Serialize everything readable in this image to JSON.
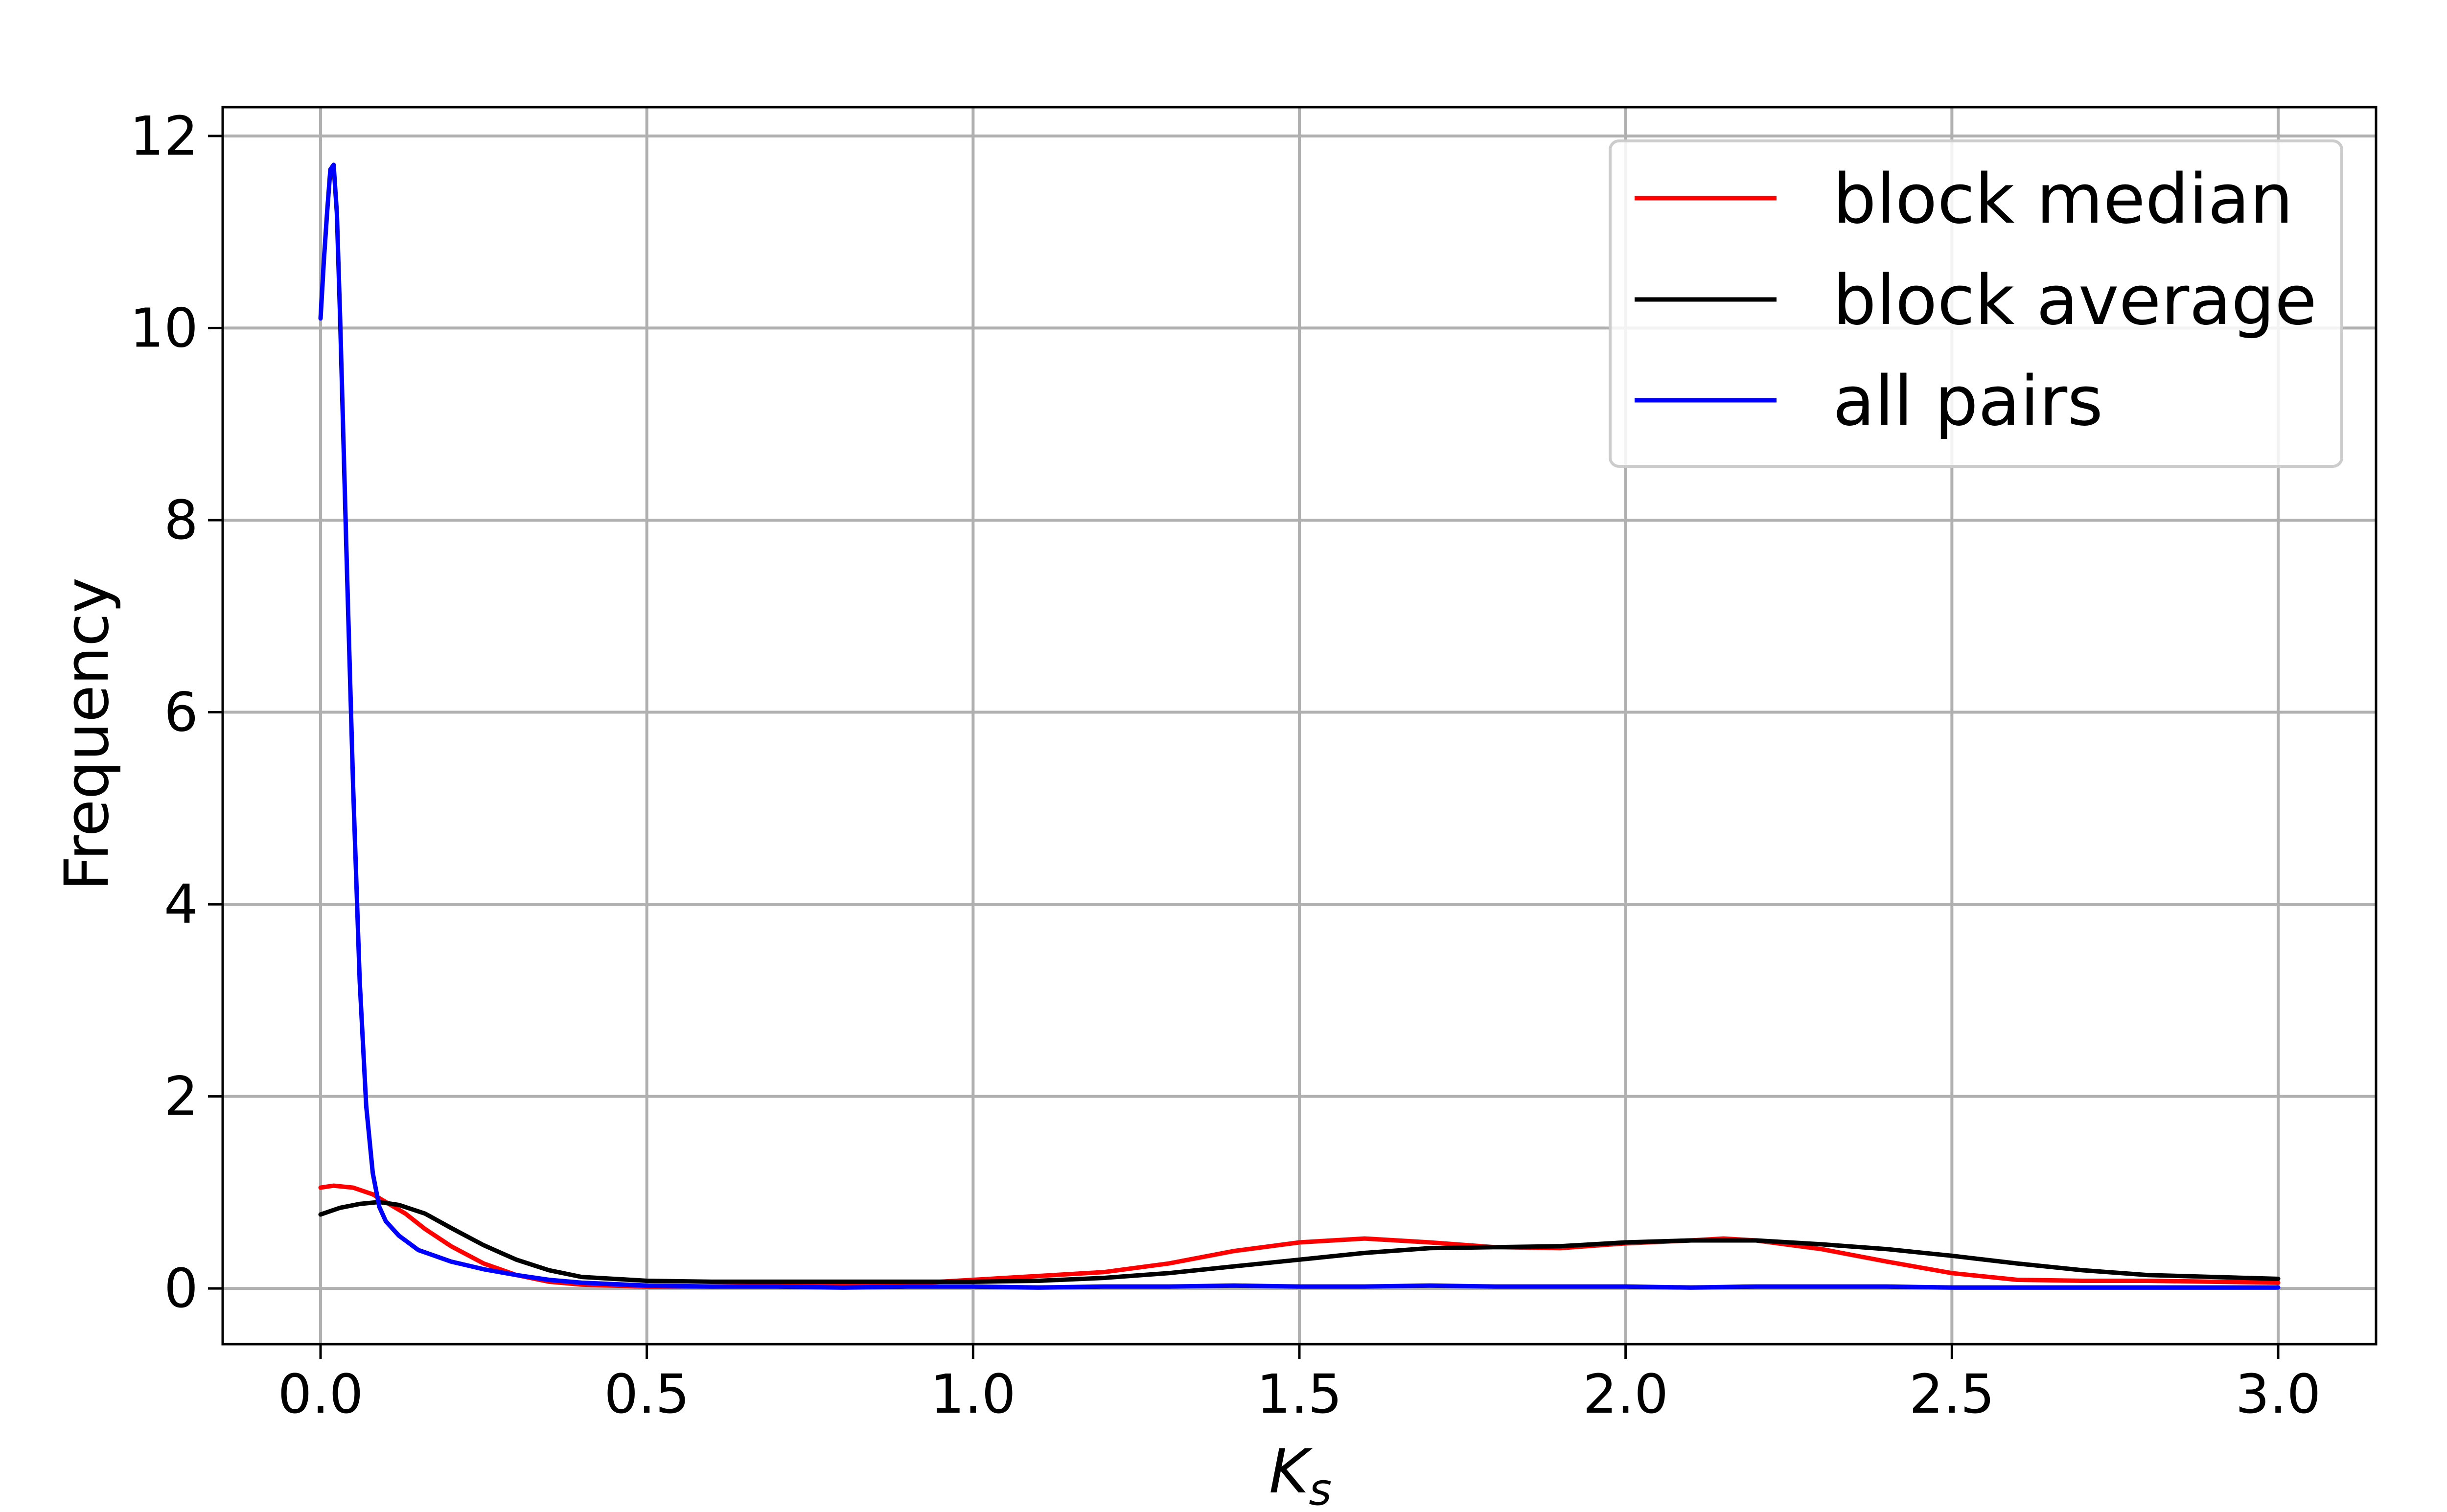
{
  "chart_data": {
    "type": "line",
    "title": "",
    "xlabel_main": "K",
    "xlabel_sub": "s",
    "ylabel": "Frequency",
    "xlim": [
      -0.15,
      3.15
    ],
    "ylim": [
      -0.58,
      12.3
    ],
    "xticks": [
      0.0,
      0.5,
      1.0,
      1.5,
      2.0,
      2.5,
      3.0
    ],
    "xtick_labels": [
      "0.0",
      "0.5",
      "1.0",
      "1.5",
      "2.0",
      "2.5",
      "3.0"
    ],
    "yticks": [
      0,
      2,
      4,
      6,
      8,
      10,
      12
    ],
    "ytick_labels": [
      "0",
      "2",
      "4",
      "6",
      "8",
      "10",
      "12"
    ],
    "grid": true,
    "legend_position": "top-right",
    "series": [
      {
        "name": "block median",
        "color": "#ff0000",
        "points": [
          [
            0.0,
            1.05
          ],
          [
            0.02,
            1.07
          ],
          [
            0.05,
            1.05
          ],
          [
            0.08,
            0.98
          ],
          [
            0.1,
            0.9
          ],
          [
            0.13,
            0.78
          ],
          [
            0.16,
            0.62
          ],
          [
            0.2,
            0.44
          ],
          [
            0.25,
            0.26
          ],
          [
            0.3,
            0.14
          ],
          [
            0.35,
            0.07
          ],
          [
            0.4,
            0.04
          ],
          [
            0.5,
            0.02
          ],
          [
            0.6,
            0.02
          ],
          [
            0.7,
            0.03
          ],
          [
            0.8,
            0.04
          ],
          [
            0.9,
            0.05
          ],
          [
            1.0,
            0.09
          ],
          [
            1.1,
            0.13
          ],
          [
            1.2,
            0.17
          ],
          [
            1.3,
            0.26
          ],
          [
            1.4,
            0.39
          ],
          [
            1.5,
            0.48
          ],
          [
            1.6,
            0.52
          ],
          [
            1.7,
            0.48
          ],
          [
            1.8,
            0.43
          ],
          [
            1.9,
            0.42
          ],
          [
            2.0,
            0.47
          ],
          [
            2.1,
            0.5
          ],
          [
            2.15,
            0.52
          ],
          [
            2.2,
            0.5
          ],
          [
            2.3,
            0.41
          ],
          [
            2.4,
            0.28
          ],
          [
            2.5,
            0.16
          ],
          [
            2.6,
            0.09
          ],
          [
            2.7,
            0.08
          ],
          [
            2.8,
            0.08
          ],
          [
            2.9,
            0.07
          ],
          [
            3.0,
            0.06
          ]
        ]
      },
      {
        "name": "block average",
        "color": "#000000",
        "points": [
          [
            0.0,
            0.77
          ],
          [
            0.03,
            0.84
          ],
          [
            0.06,
            0.88
          ],
          [
            0.09,
            0.9
          ],
          [
            0.12,
            0.87
          ],
          [
            0.16,
            0.78
          ],
          [
            0.2,
            0.63
          ],
          [
            0.25,
            0.45
          ],
          [
            0.3,
            0.3
          ],
          [
            0.35,
            0.19
          ],
          [
            0.4,
            0.12
          ],
          [
            0.5,
            0.08
          ],
          [
            0.6,
            0.07
          ],
          [
            0.7,
            0.07
          ],
          [
            0.8,
            0.07
          ],
          [
            0.9,
            0.07
          ],
          [
            1.0,
            0.07
          ],
          [
            1.1,
            0.08
          ],
          [
            1.2,
            0.11
          ],
          [
            1.3,
            0.16
          ],
          [
            1.4,
            0.23
          ],
          [
            1.5,
            0.3
          ],
          [
            1.6,
            0.37
          ],
          [
            1.7,
            0.42
          ],
          [
            1.8,
            0.43
          ],
          [
            1.9,
            0.44
          ],
          [
            2.0,
            0.48
          ],
          [
            2.1,
            0.5
          ],
          [
            2.2,
            0.5
          ],
          [
            2.3,
            0.46
          ],
          [
            2.4,
            0.41
          ],
          [
            2.5,
            0.34
          ],
          [
            2.6,
            0.26
          ],
          [
            2.7,
            0.19
          ],
          [
            2.8,
            0.14
          ],
          [
            2.9,
            0.12
          ],
          [
            3.0,
            0.1
          ]
        ]
      },
      {
        "name": "all pairs",
        "color": "#0000ff",
        "points": [
          [
            0.0,
            10.1
          ],
          [
            0.005,
            10.7
          ],
          [
            0.01,
            11.2
          ],
          [
            0.015,
            11.65
          ],
          [
            0.02,
            11.7
          ],
          [
            0.025,
            11.2
          ],
          [
            0.03,
            10.1
          ],
          [
            0.04,
            7.6
          ],
          [
            0.05,
            5.2
          ],
          [
            0.06,
            3.2
          ],
          [
            0.07,
            1.9
          ],
          [
            0.08,
            1.2
          ],
          [
            0.09,
            0.85
          ],
          [
            0.1,
            0.7
          ],
          [
            0.12,
            0.55
          ],
          [
            0.15,
            0.4
          ],
          [
            0.2,
            0.28
          ],
          [
            0.25,
            0.2
          ],
          [
            0.3,
            0.14
          ],
          [
            0.35,
            0.09
          ],
          [
            0.4,
            0.06
          ],
          [
            0.5,
            0.03
          ],
          [
            0.6,
            0.02
          ],
          [
            0.7,
            0.02
          ],
          [
            0.8,
            0.01
          ],
          [
            0.9,
            0.02
          ],
          [
            1.0,
            0.02
          ],
          [
            1.1,
            0.01
          ],
          [
            1.2,
            0.02
          ],
          [
            1.3,
            0.02
          ],
          [
            1.4,
            0.03
          ],
          [
            1.5,
            0.02
          ],
          [
            1.6,
            0.02
          ],
          [
            1.7,
            0.03
          ],
          [
            1.8,
            0.02
          ],
          [
            1.9,
            0.02
          ],
          [
            2.0,
            0.02
          ],
          [
            2.1,
            0.01
          ],
          [
            2.2,
            0.02
          ],
          [
            2.3,
            0.02
          ],
          [
            2.4,
            0.02
          ],
          [
            2.5,
            0.01
          ],
          [
            2.6,
            0.01
          ],
          [
            2.7,
            0.01
          ],
          [
            2.8,
            0.01
          ],
          [
            2.9,
            0.01
          ],
          [
            3.0,
            0.01
          ]
        ]
      }
    ]
  }
}
